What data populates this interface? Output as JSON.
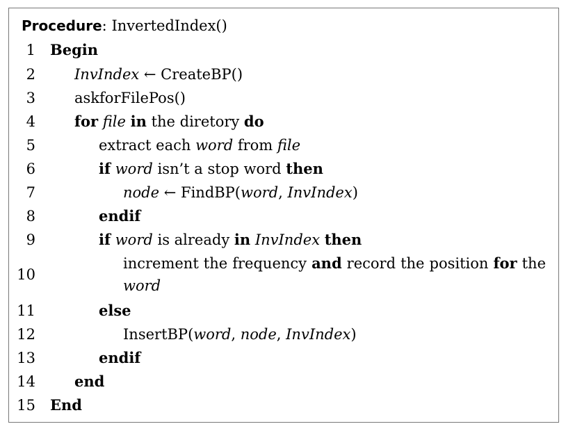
{
  "header": {
    "label": "Procedure",
    "colon": ":",
    "name": "InvertedIndex()"
  },
  "lines": [
    {
      "num": "1",
      "indent": 0,
      "segments": [
        {
          "t": "Begin",
          "s": "b"
        }
      ]
    },
    {
      "num": "2",
      "indent": 1,
      "segments": [
        {
          "t": "InvIndex",
          "s": "i"
        },
        {
          "t": " ← CreateBP()",
          "s": ""
        }
      ]
    },
    {
      "num": "3",
      "indent": 1,
      "segments": [
        {
          "t": "askforFilePos()",
          "s": ""
        }
      ]
    },
    {
      "num": "4",
      "indent": 1,
      "segments": [
        {
          "t": "for",
          "s": "b"
        },
        {
          "t": " ",
          "s": ""
        },
        {
          "t": "file",
          "s": "i"
        },
        {
          "t": " ",
          "s": ""
        },
        {
          "t": "in",
          "s": "b"
        },
        {
          "t": " the diretory ",
          "s": ""
        },
        {
          "t": "do",
          "s": "b"
        }
      ]
    },
    {
      "num": "5",
      "indent": 2,
      "segments": [
        {
          "t": "extract each ",
          "s": ""
        },
        {
          "t": "word",
          "s": "i"
        },
        {
          "t": " from ",
          "s": ""
        },
        {
          "t": "file",
          "s": "i"
        }
      ]
    },
    {
      "num": "6",
      "indent": 2,
      "segments": [
        {
          "t": "if",
          "s": "b"
        },
        {
          "t": " ",
          "s": ""
        },
        {
          "t": "word",
          "s": "i"
        },
        {
          "t": " isn’t a stop word ",
          "s": ""
        },
        {
          "t": "then",
          "s": "b"
        }
      ]
    },
    {
      "num": "7",
      "indent": 3,
      "segments": [
        {
          "t": "node",
          "s": "i"
        },
        {
          "t": " ← FindBP(",
          "s": ""
        },
        {
          "t": "word",
          "s": "i"
        },
        {
          "t": ", ",
          "s": ""
        },
        {
          "t": "InvIndex",
          "s": "i"
        },
        {
          "t": ")",
          "s": ""
        }
      ]
    },
    {
      "num": "8",
      "indent": 2,
      "segments": [
        {
          "t": "endif",
          "s": "b"
        }
      ]
    },
    {
      "num": "9",
      "indent": 2,
      "segments": [
        {
          "t": "if",
          "s": "b"
        },
        {
          "t": " ",
          "s": ""
        },
        {
          "t": "word",
          "s": "i"
        },
        {
          "t": " is already ",
          "s": ""
        },
        {
          "t": "in",
          "s": "b"
        },
        {
          "t": " ",
          "s": ""
        },
        {
          "t": "InvIndex",
          "s": "i"
        },
        {
          "t": " ",
          "s": ""
        },
        {
          "t": "then",
          "s": "b"
        }
      ]
    },
    {
      "num": "10",
      "indent": 3,
      "wrapped": true,
      "segments": [
        {
          "t": "increment the frequency ",
          "s": ""
        },
        {
          "t": "and",
          "s": "b"
        },
        {
          "t": " record the position ",
          "s": ""
        },
        {
          "t": "for",
          "s": "b"
        },
        {
          "t": " the ",
          "s": ""
        },
        {
          "t": "word",
          "s": "i"
        }
      ]
    },
    {
      "num": "11",
      "indent": 2,
      "segments": [
        {
          "t": "else",
          "s": "b"
        }
      ]
    },
    {
      "num": "12",
      "indent": 3,
      "segments": [
        {
          "t": "InsertBP(",
          "s": ""
        },
        {
          "t": "word",
          "s": "i"
        },
        {
          "t": ", ",
          "s": ""
        },
        {
          "t": "node",
          "s": "i"
        },
        {
          "t": ", ",
          "s": ""
        },
        {
          "t": "InvIndex",
          "s": "i"
        },
        {
          "t": ")",
          "s": ""
        }
      ]
    },
    {
      "num": "13",
      "indent": 2,
      "segments": [
        {
          "t": "endif",
          "s": "b"
        }
      ]
    },
    {
      "num": "14",
      "indent": 1,
      "segments": [
        {
          "t": "end",
          "s": "b"
        }
      ]
    },
    {
      "num": "15",
      "indent": 0,
      "segments": [
        {
          "t": "End",
          "s": "b"
        }
      ]
    }
  ]
}
